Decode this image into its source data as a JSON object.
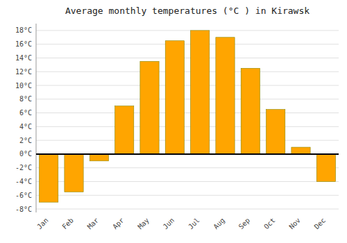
{
  "chart_data": {
    "type": "bar",
    "title": "Average monthly temperatures (°C ) in Kirawsk",
    "categories": [
      "Jan",
      "Feb",
      "Mar",
      "Apr",
      "May",
      "Jun",
      "Jul",
      "Aug",
      "Sep",
      "Oct",
      "Nov",
      "Dec"
    ],
    "values": [
      -7.0,
      -5.5,
      -1.0,
      7.0,
      13.5,
      16.5,
      18.0,
      17.0,
      12.5,
      6.5,
      1.0,
      -4.0
    ],
    "color": "#FFA500",
    "ylim": [
      -8.5,
      19
    ],
    "yticks": [
      {
        "value": -8,
        "label": "-8°C"
      },
      {
        "value": -6,
        "label": "-6°C"
      },
      {
        "value": -4,
        "label": "-4°C"
      },
      {
        "value": -2,
        "label": "-2°C"
      },
      {
        "value": 0,
        "label": "0°C"
      },
      {
        "value": 2,
        "label": "2°C"
      },
      {
        "value": 4,
        "label": "4°C"
      },
      {
        "value": 6,
        "label": "6°C"
      },
      {
        "value": 8,
        "label": "8°C"
      },
      {
        "value": 10,
        "label": "10°C"
      },
      {
        "value": 12,
        "label": "12°C"
      },
      {
        "value": 14,
        "label": "14°C"
      },
      {
        "value": 16,
        "label": "16°C"
      },
      {
        "value": 18,
        "label": "18°C"
      }
    ],
    "grid": true
  }
}
